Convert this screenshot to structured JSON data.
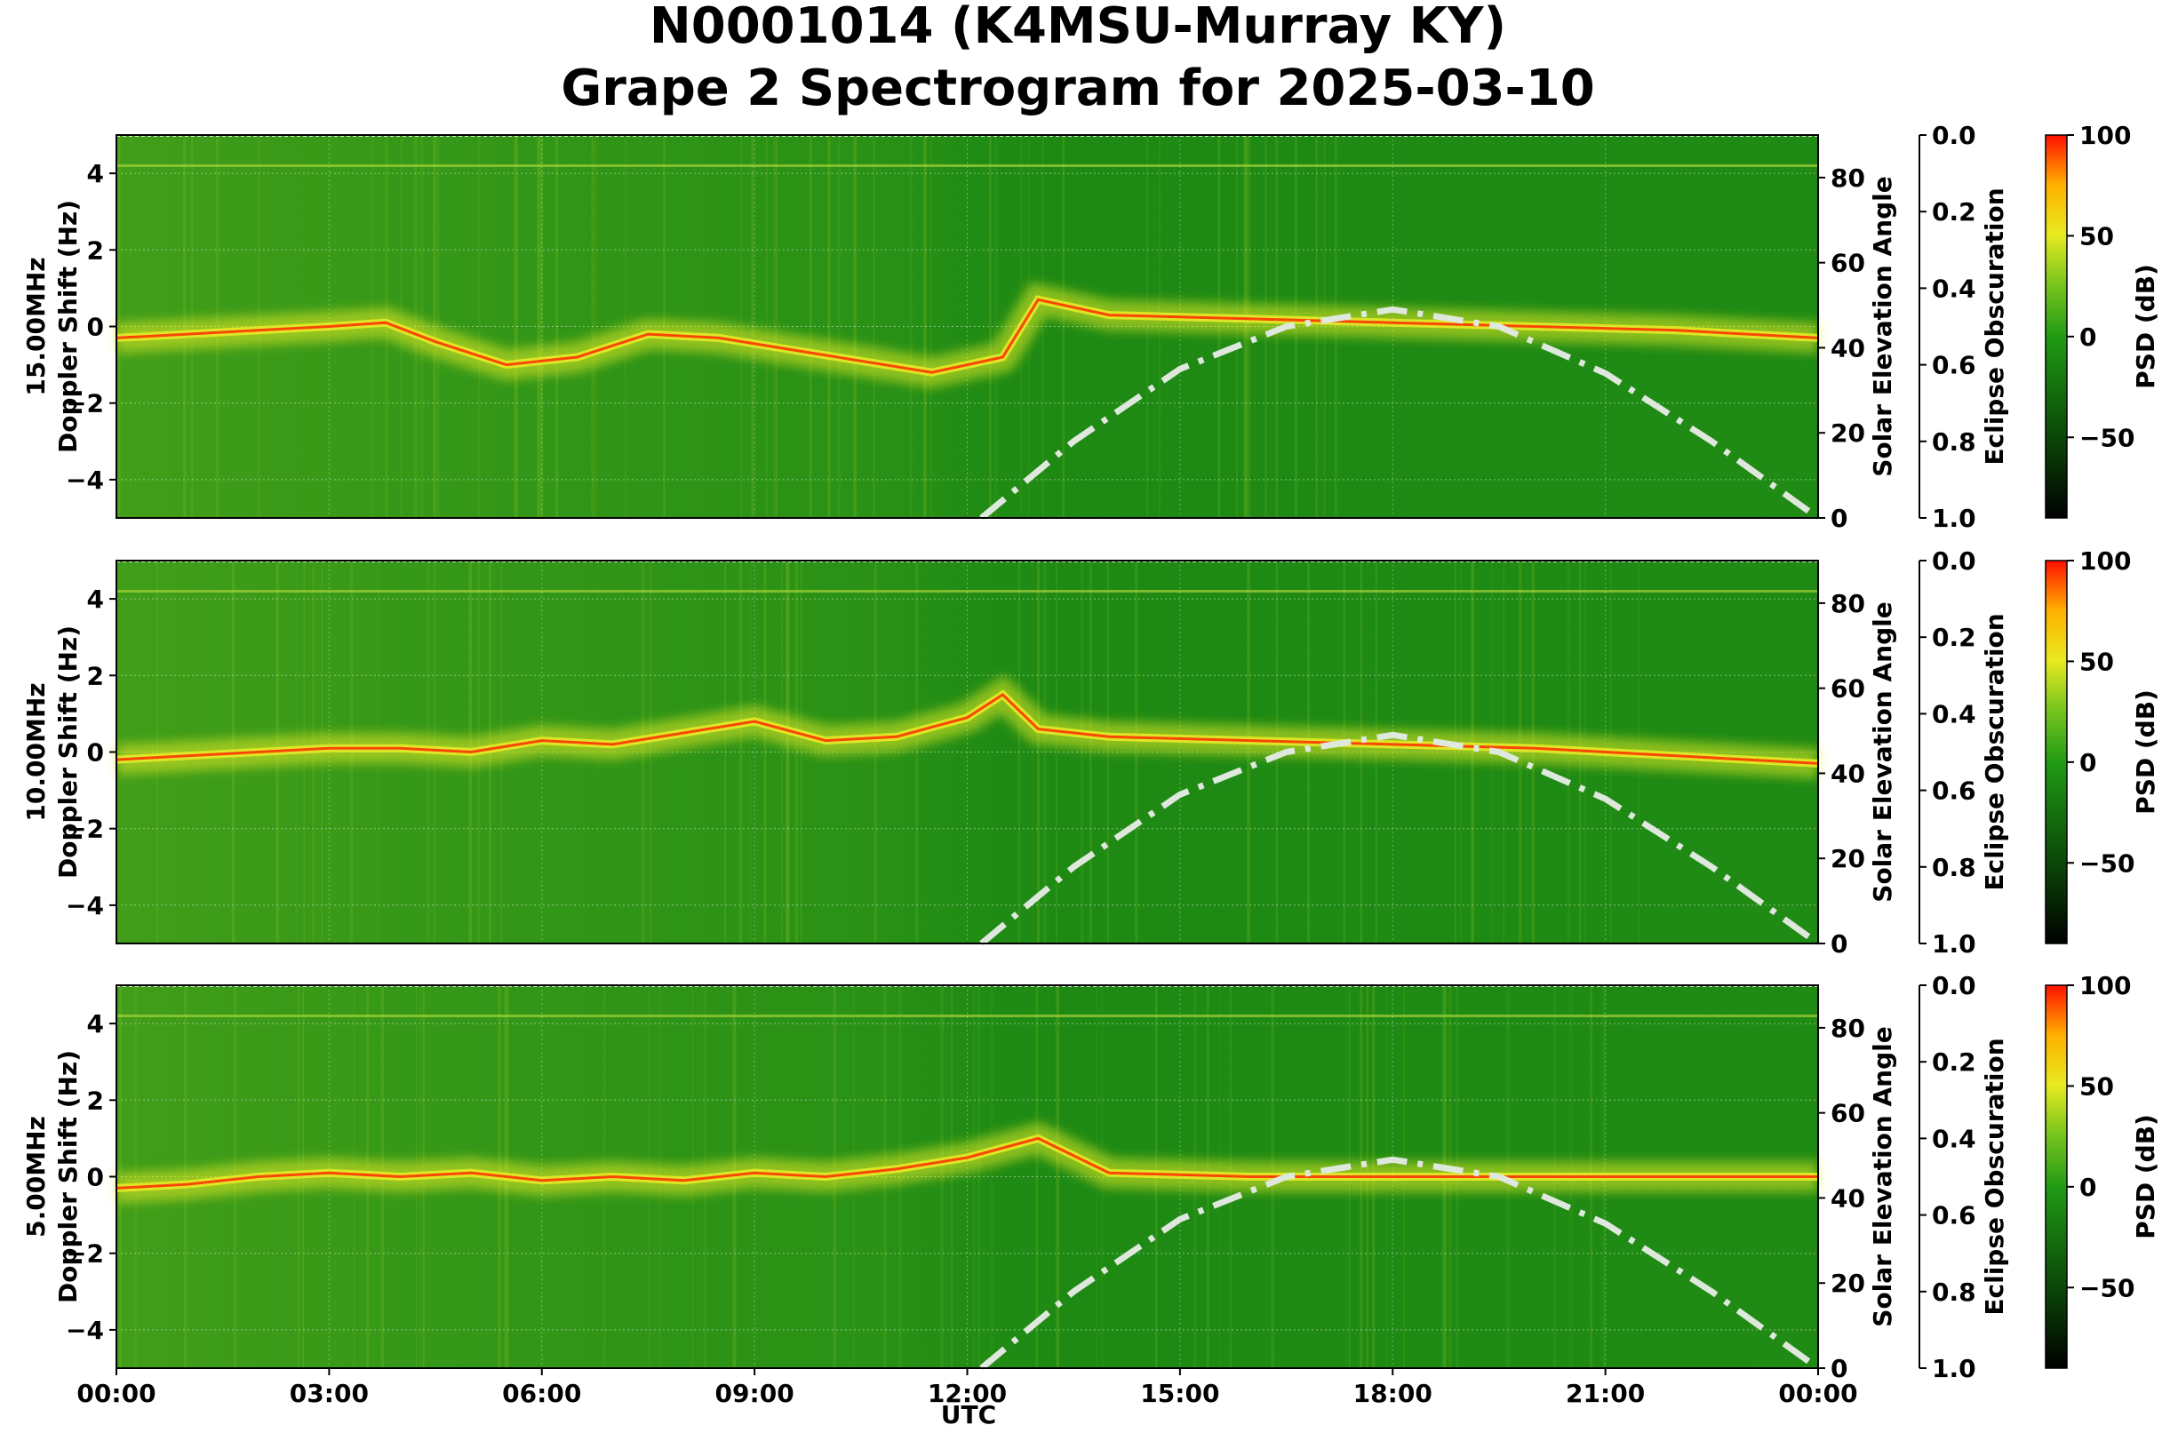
{
  "title_line1": "N0001014 (K4MSU-Murray KY)",
  "title_line2": "Grape 2 Spectrogram for 2025-03-10",
  "colors": {
    "background_green": "#1f8a14",
    "signal_yellow": "#e6ea28",
    "peak_red": "#ff2a00",
    "elevation_curve": "#dfe8dc"
  },
  "chart_data": [
    {
      "type": "heatmap",
      "name": "15.00MHz",
      "ylabel_line1": "15.00MHz",
      "ylabel_line2": "Doppler Shift (Hz)",
      "ylim": [
        -5,
        5
      ],
      "yticks": [
        4,
        2,
        0,
        -2,
        -4
      ],
      "right_axis1": {
        "label": "Solar Elevation Angle",
        "ticks": [
          80,
          60,
          40,
          20,
          0
        ],
        "lim": [
          0,
          90
        ]
      },
      "right_axis2": {
        "label": "Eclipse Obscuration",
        "ticks": [
          "0.0",
          "0.2",
          "0.4",
          "0.6",
          "0.8",
          "1.0"
        ],
        "lim": [
          0,
          1
        ]
      },
      "colorbar": {
        "label": "PSD (dB)",
        "ticks": [
          100,
          50,
          0,
          -50
        ],
        "lim": [
          -90,
          100
        ]
      },
      "trace": {
        "x_hours": [
          0.0,
          1.0,
          2.0,
          3.0,
          3.8,
          4.5,
          5.5,
          6.5,
          7.5,
          8.5,
          9.5,
          10.5,
          11.5,
          12.5,
          13.0,
          14.0,
          16.0,
          18.0,
          20.0,
          22.0,
          24.0
        ],
        "doppler": [
          -0.3,
          -0.2,
          -0.1,
          0.0,
          0.1,
          -0.4,
          -1.0,
          -0.8,
          -0.2,
          -0.3,
          -0.6,
          -0.9,
          -1.2,
          -0.8,
          0.7,
          0.3,
          0.2,
          0.1,
          0.0,
          -0.1,
          -0.3
        ]
      }
    },
    {
      "type": "heatmap",
      "name": "10.00MHz",
      "ylabel_line1": "10.00MHz",
      "ylabel_line2": "Doppler Shift (Hz)",
      "ylim": [
        -5,
        5
      ],
      "yticks": [
        4,
        2,
        0,
        -2,
        -4
      ],
      "right_axis1": {
        "label": "Solar Elevation Angle",
        "ticks": [
          80,
          60,
          40,
          20,
          0
        ],
        "lim": [
          0,
          90
        ]
      },
      "right_axis2": {
        "label": "Eclipse Obscuration",
        "ticks": [
          "0.0",
          "0.2",
          "0.4",
          "0.6",
          "0.8",
          "1.0"
        ],
        "lim": [
          0,
          1
        ]
      },
      "colorbar": {
        "label": "PSD (dB)",
        "ticks": [
          100,
          50,
          0,
          -50
        ],
        "lim": [
          -90,
          100
        ]
      },
      "trace": {
        "x_hours": [
          0.0,
          1.0,
          2.0,
          3.0,
          4.0,
          5.0,
          6.0,
          7.0,
          8.0,
          9.0,
          10.0,
          11.0,
          12.0,
          12.5,
          13.0,
          14.0,
          16.0,
          18.0,
          20.0,
          22.0,
          24.0
        ],
        "doppler": [
          -0.2,
          -0.1,
          0.0,
          0.1,
          0.1,
          0.0,
          0.3,
          0.2,
          0.5,
          0.8,
          0.3,
          0.4,
          0.9,
          1.5,
          0.6,
          0.4,
          0.3,
          0.2,
          0.1,
          -0.1,
          -0.3
        ]
      }
    },
    {
      "type": "heatmap",
      "name": "5.00MHz",
      "ylabel_line1": "5.00MHz",
      "ylabel_line2": "Doppler Shift (Hz)",
      "ylim": [
        -5,
        5
      ],
      "yticks": [
        4,
        2,
        0,
        -2,
        -4
      ],
      "right_axis1": {
        "label": "Solar Elevation Angle",
        "ticks": [
          80,
          60,
          40,
          20,
          0
        ],
        "lim": [
          0,
          90
        ]
      },
      "right_axis2": {
        "label": "Eclipse Obscuration",
        "ticks": [
          "0.0",
          "0.2",
          "0.4",
          "0.6",
          "0.8",
          "1.0"
        ],
        "lim": [
          0,
          1
        ]
      },
      "colorbar": {
        "label": "PSD (dB)",
        "ticks": [
          100,
          50,
          0,
          -50
        ],
        "lim": [
          -90,
          100
        ]
      },
      "trace": {
        "x_hours": [
          0.0,
          1.0,
          2.0,
          3.0,
          4.0,
          5.0,
          6.0,
          7.0,
          8.0,
          9.0,
          10.0,
          11.0,
          12.0,
          13.0,
          14.0,
          16.0,
          18.0,
          20.0,
          22.0,
          24.0
        ],
        "doppler": [
          -0.3,
          -0.2,
          0.0,
          0.1,
          0.0,
          0.1,
          -0.1,
          0.0,
          -0.1,
          0.1,
          0.0,
          0.2,
          0.5,
          1.0,
          0.1,
          0.0,
          0.0,
          0.0,
          0.0,
          0.0
        ]
      }
    }
  ],
  "solar_elevation_curve": {
    "x_hours": [
      12.2,
      13.5,
      15.0,
      16.5,
      18.0,
      19.5,
      21.0,
      22.5,
      24.0
    ],
    "elevation_deg": [
      0,
      18,
      35,
      45,
      49,
      45,
      34,
      18,
      0
    ]
  },
  "xaxis": {
    "label": "UTC",
    "tick_hours": [
      0,
      3,
      6,
      9,
      12,
      15,
      18,
      21,
      24
    ],
    "tick_labels": [
      "00:00",
      "03:00",
      "06:00",
      "09:00",
      "12:00",
      "15:00",
      "18:00",
      "21:00",
      "00:00"
    ]
  }
}
